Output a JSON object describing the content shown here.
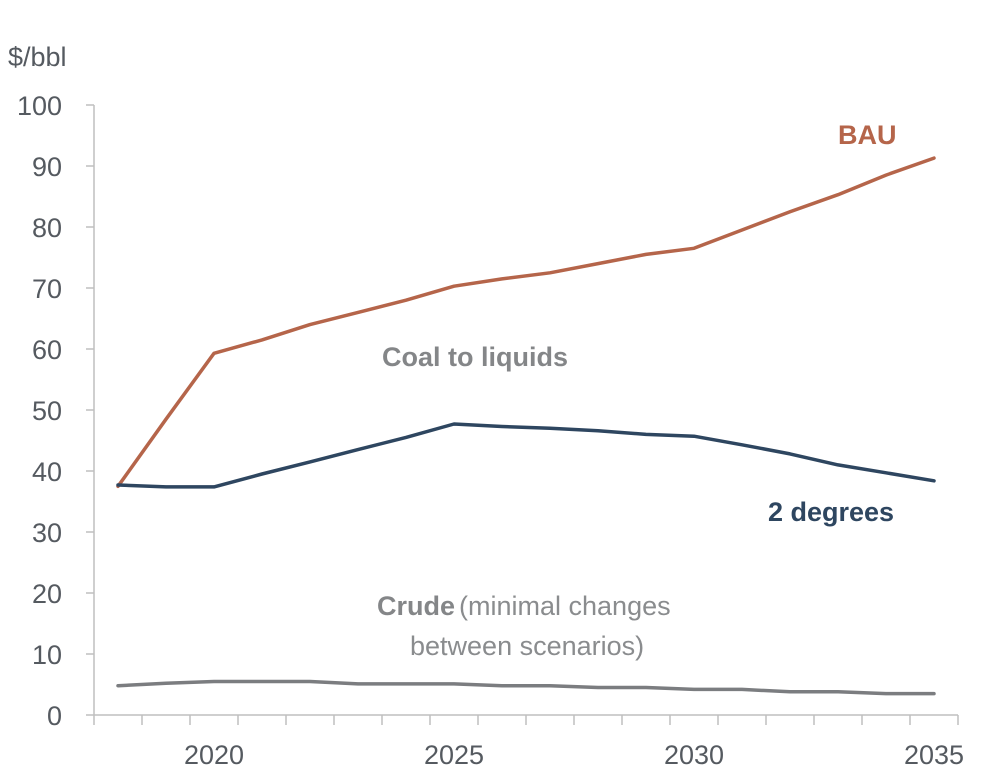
{
  "chart_data": {
    "type": "line",
    "title": "",
    "xlabel": "",
    "ylabel": "$/bbl",
    "xlim": [
      2017.5,
      2035.5
    ],
    "ylim": [
      0,
      100
    ],
    "y_ticks": [
      0,
      10,
      20,
      30,
      40,
      50,
      60,
      70,
      80,
      90,
      100
    ],
    "x_ticks": [
      2020,
      2025,
      2030,
      2035
    ],
    "x_minor_step": 1,
    "grid": false,
    "legend": "none",
    "x": [
      2018,
      2019,
      2020,
      2021,
      2022,
      2023,
      2024,
      2025,
      2026,
      2027,
      2028,
      2029,
      2030,
      2031,
      2032,
      2033,
      2034,
      2035
    ],
    "series": [
      {
        "name": "BAU",
        "color": "#b5654a",
        "values": [
          37.5,
          48.5,
          59.3,
          61.5,
          64.0,
          66.0,
          68.0,
          70.3,
          71.5,
          72.5,
          74.0,
          75.5,
          76.5,
          79.5,
          82.5,
          85.3,
          88.5,
          91.3
        ]
      },
      {
        "name": "2 degrees",
        "color": "#2e4660",
        "values": [
          37.7,
          37.4,
          37.4,
          39.5,
          41.5,
          43.5,
          45.5,
          47.7,
          47.3,
          47.0,
          46.6,
          46.0,
          45.7,
          44.3,
          42.8,
          41.0,
          39.7,
          38.4
        ]
      },
      {
        "name": "Crude",
        "color": "#7b7d80",
        "values": [
          4.8,
          5.2,
          5.5,
          5.5,
          5.5,
          5.1,
          5.1,
          5.1,
          4.8,
          4.8,
          4.5,
          4.5,
          4.2,
          4.2,
          3.8,
          3.8,
          3.5,
          3.5
        ]
      }
    ],
    "annotations": {
      "bau_label": "BAU",
      "two_degrees_label": "2 degrees",
      "coal_label": "Coal to liquids",
      "crude_label": "Crude",
      "crude_note_line1": "(minimal changes",
      "crude_note_line2": "between scenarios)"
    }
  }
}
